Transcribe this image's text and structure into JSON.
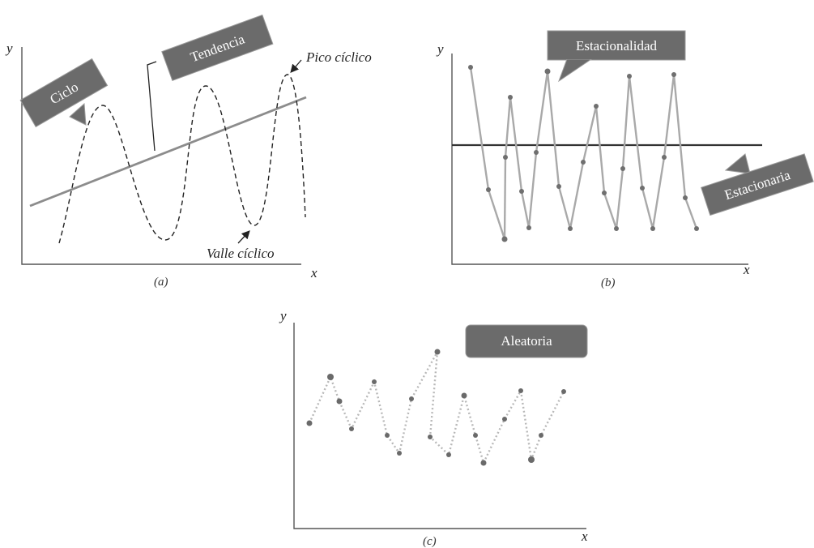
{
  "panels": {
    "a": {
      "label": "(a)",
      "x_axis": "x",
      "y_axis": "y",
      "callouts": {
        "cycle": "Ciclo",
        "trend": "Tendencia"
      },
      "annotations": {
        "peak": "Pico cíclico",
        "trough": "Valle cíclico"
      }
    },
    "b": {
      "label": "(b)",
      "x_axis": "x",
      "y_axis": "y",
      "callouts": {
        "seasonality": "Estacionalidad",
        "stationary": "Estacionaria"
      }
    },
    "c": {
      "label": "(c)",
      "x_axis": "x",
      "y_axis": "y",
      "callouts": {
        "random": "Aleatoria"
      }
    }
  },
  "colors": {
    "callout_fill": "#6b6b6b",
    "trend": "#8c8c8c",
    "series_line": "#a9a9a9",
    "points": "#6f6f6f"
  }
}
